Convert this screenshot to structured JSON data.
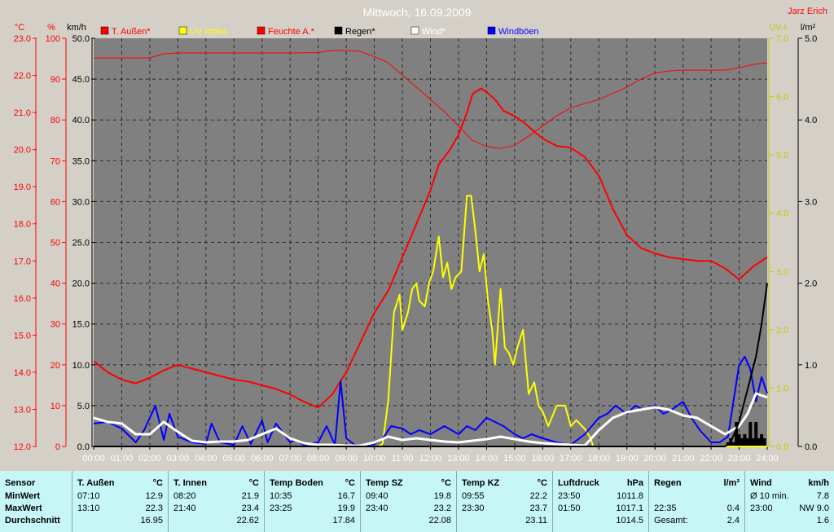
{
  "header": {
    "title": "Mittwoch, 16.09.2009",
    "author": "Jarz Erich"
  },
  "axes": {
    "temp": {
      "unit": "°C",
      "ticks": [
        "23.0",
        "22.0",
        "21.0",
        "20.0",
        "19.0",
        "18.0",
        "17.0",
        "16.0",
        "15.0",
        "14.0",
        "13.0",
        "12.0"
      ]
    },
    "hum": {
      "unit": "%",
      "ticks": [
        "100",
        "90",
        "80",
        "70",
        "60",
        "50",
        "40",
        "30",
        "20",
        "10",
        "0"
      ]
    },
    "wind": {
      "unit": "km/h",
      "ticks": [
        "50.0",
        "45.0",
        "40.0",
        "35.0",
        "30.0",
        "25.0",
        "20.0",
        "15.0",
        "10.0",
        "5.0",
        "0.0"
      ]
    },
    "uv": {
      "unit": "UV-I",
      "ticks": [
        "7.0",
        "6.0",
        "5.0",
        "4.0",
        "3.0",
        "2.0",
        "1.0",
        "0.0"
      ]
    },
    "rain": {
      "unit": "l/m²",
      "ticks": [
        "5.0",
        "4.0",
        "3.0",
        "2.0",
        "1.0",
        "0.0"
      ]
    },
    "x": [
      "00:00",
      "01:00",
      "02:00",
      "03:00",
      "04:00",
      "05:00",
      "06:00",
      "07:00",
      "08:00",
      "09:00",
      "10:00",
      "11:00",
      "12:00",
      "13:00",
      "14:00",
      "15:00",
      "16:00",
      "17:00",
      "18:00",
      "19:00",
      "20:00",
      "21:00",
      "22:00",
      "23:00",
      "24:00"
    ]
  },
  "legend": [
    {
      "label": "T. Außen*",
      "color": "#ff0000"
    },
    {
      "label": "UV Index",
      "color": "#ffff00"
    },
    {
      "label": "Feuchte A.*",
      "color": "#ff0000"
    },
    {
      "label": "Regen*",
      "color": "#000000"
    },
    {
      "label": "Wind*",
      "color": "#ffffff"
    },
    {
      "label": "Windböen",
      "color": "#0000ff"
    }
  ],
  "chart_data": {
    "type": "line",
    "title": "Mittwoch, 16.09.2009",
    "xlim": [
      0,
      24
    ],
    "series": [
      {
        "name": "T. Außen*",
        "axis": "temp",
        "color": "#ff0000",
        "width": 2,
        "x": [
          0,
          0.5,
          1,
          1.5,
          2,
          2.5,
          3,
          3.5,
          4,
          4.5,
          5,
          5.5,
          6,
          6.5,
          7,
          7.5,
          8,
          8.5,
          9,
          9.5,
          10,
          10.5,
          11,
          11.5,
          12,
          12.3,
          12.7,
          13,
          13.3,
          13.5,
          13.8,
          14,
          14.3,
          14.6,
          15,
          15.3,
          15.6,
          16,
          16.5,
          17,
          17.5,
          18,
          18.5,
          19,
          19.5,
          20,
          20.5,
          21,
          21.5,
          22,
          22.5,
          23,
          23.5,
          24
        ],
        "y": [
          14.3,
          14.0,
          13.8,
          13.7,
          13.85,
          14.05,
          14.2,
          14.1,
          14.0,
          13.9,
          13.8,
          13.75,
          13.65,
          13.55,
          13.4,
          13.2,
          13.05,
          13.4,
          14.0,
          14.8,
          15.6,
          16.2,
          17.1,
          18.0,
          18.9,
          19.6,
          20.0,
          20.4,
          21.0,
          21.5,
          21.65,
          21.55,
          21.35,
          21.05,
          20.9,
          20.75,
          20.55,
          20.3,
          20.1,
          20.05,
          19.8,
          19.3,
          18.4,
          17.7,
          17.35,
          17.2,
          17.1,
          17.05,
          17.0,
          17.0,
          16.8,
          16.5,
          16.85,
          17.1
        ]
      },
      {
        "name": "Feuchte A.*",
        "axis": "hum",
        "color": "#ff0000",
        "width": 1,
        "x": [
          0,
          1,
          2,
          2.5,
          3,
          4,
          5,
          6,
          7,
          8,
          8.5,
          9,
          9.5,
          10,
          10.5,
          11,
          11.5,
          12,
          12.5,
          13,
          13.5,
          14,
          14.5,
          15,
          15.5,
          16,
          16.5,
          17,
          17.5,
          18,
          18.5,
          19,
          19.5,
          20,
          20.5,
          21,
          21.5,
          22,
          22.5,
          23,
          23.5,
          24
        ],
        "y": [
          95.2,
          95.2,
          95.2,
          96.2,
          96.4,
          96.4,
          96.4,
          96.4,
          96.4,
          96.5,
          97.0,
          97.0,
          96.8,
          95.5,
          94.0,
          91.0,
          88.0,
          85.0,
          82.0,
          78.5,
          75.0,
          73.5,
          73.0,
          73.8,
          76.0,
          78.5,
          81.0,
          83.0,
          84.0,
          85.0,
          86.5,
          88.0,
          90.0,
          91.5,
          92.0,
          92.2,
          92.2,
          92.2,
          92.2,
          92.8,
          93.6,
          94.0
        ]
      },
      {
        "name": "UV Index",
        "axis": "uv",
        "color": "#ffff00",
        "width": 2,
        "x": [
          0,
          10.15,
          10.3,
          10.5,
          10.7,
          10.9,
          11.0,
          11.2,
          11.35,
          11.5,
          11.6,
          11.8,
          11.95,
          12.1,
          12.3,
          12.45,
          12.6,
          12.75,
          12.9,
          13.1,
          13.3,
          13.45,
          13.6,
          13.75,
          13.9,
          14.05,
          14.2,
          14.3,
          14.5,
          14.65,
          14.8,
          14.95,
          15.1,
          15.3,
          15.5,
          15.7,
          15.85,
          16.0,
          16.2,
          16.5,
          16.8,
          17.0,
          17.2,
          17.5,
          17.7,
          17.8,
          24
        ],
        "y": [
          0,
          0,
          0.05,
          0.8,
          2.3,
          2.6,
          2.0,
          2.3,
          2.7,
          2.8,
          2.5,
          2.4,
          2.8,
          3.0,
          3.6,
          2.9,
          3.15,
          2.7,
          2.9,
          3.0,
          4.3,
          4.3,
          3.7,
          3.0,
          3.3,
          2.5,
          2.0,
          1.4,
          2.7,
          1.7,
          1.6,
          1.4,
          1.7,
          2.0,
          0.9,
          1.1,
          0.7,
          0.6,
          0.35,
          0.7,
          0.7,
          0.35,
          0.45,
          0.3,
          0.15,
          0,
          0
        ]
      },
      {
        "name": "Windböen",
        "axis": "wind",
        "color": "#0000ff",
        "width": 2,
        "x": [
          0,
          0.5,
          1,
          1.5,
          1.8,
          2,
          2.2,
          2.5,
          2.7,
          3,
          3.5,
          4,
          4.2,
          4.5,
          5,
          5.3,
          5.6,
          6,
          6.2,
          6.5,
          7,
          7.2,
          7.5,
          8,
          8.3,
          8.6,
          8.8,
          9,
          9.3,
          9.6,
          10,
          10.3,
          10.6,
          11,
          11.3,
          11.6,
          12,
          12.5,
          13,
          13.3,
          13.6,
          14,
          14.3,
          14.6,
          15,
          15.3,
          15.6,
          16,
          16.5,
          17,
          17.5,
          18,
          18.3,
          18.6,
          19,
          19.3,
          19.6,
          20,
          20.3,
          20.6,
          21,
          21.3,
          21.6,
          22,
          22.3,
          22.6,
          23,
          23.2,
          23.4,
          23.6,
          23.8,
          24
        ],
        "y": [
          2.8,
          3.0,
          2.2,
          0.5,
          2.0,
          3.5,
          5.0,
          0.8,
          4.0,
          1.2,
          0.5,
          0.3,
          2.8,
          0.5,
          0.2,
          2.5,
          0.3,
          3.2,
          0.5,
          2.8,
          0.5,
          0.8,
          0.2,
          0.5,
          2.5,
          0.2,
          8.0,
          1.0,
          0.2,
          0.1,
          0.3,
          1.0,
          2.5,
          2.2,
          1.5,
          2.0,
          1.5,
          2.5,
          1.5,
          2.5,
          2.0,
          3.5,
          3.0,
          2.5,
          1.5,
          1.0,
          1.5,
          1.0,
          0.5,
          0.2,
          1.5,
          3.5,
          4.0,
          5.0,
          4.0,
          5.0,
          4.5,
          5.0,
          4.0,
          4.5,
          5.5,
          3.5,
          2.0,
          0.5,
          0.5,
          1.2,
          10.0,
          11.0,
          9.5,
          5.5,
          8.5,
          6.5
        ]
      },
      {
        "name": "Wind*",
        "axis": "wind",
        "color": "#ffffff",
        "width": 3,
        "x": [
          0,
          0.5,
          1,
          1.5,
          2,
          2.5,
          3,
          3.5,
          4,
          4.5,
          5,
          5.5,
          6,
          6.5,
          7,
          7.5,
          8,
          8.5,
          9,
          9.5,
          10,
          10.5,
          11,
          11.5,
          12,
          12.5,
          13,
          13.5,
          14,
          14.5,
          15,
          15.5,
          16,
          16.5,
          17,
          17.5,
          18,
          18.5,
          19,
          19.5,
          20,
          20.5,
          21,
          21.5,
          22,
          22.5,
          23,
          23.3,
          23.6,
          24
        ],
        "y": [
          3.5,
          3.0,
          2.8,
          1.5,
          1.5,
          3.0,
          1.8,
          0.7,
          0.5,
          0.6,
          0.6,
          0.8,
          1.5,
          2.2,
          1.0,
          0.4,
          0.2,
          0.2,
          0.1,
          0.1,
          0.5,
          1.2,
          0.8,
          1.0,
          0.8,
          0.6,
          0.5,
          0.7,
          0.9,
          1.2,
          0.9,
          0.6,
          0.4,
          0.3,
          0.2,
          0.1,
          2.0,
          3.5,
          4.2,
          4.5,
          4.8,
          4.5,
          3.8,
          3.5,
          2.5,
          1.5,
          2.5,
          4.0,
          6.5,
          6.0
        ]
      },
      {
        "name": "Regen*",
        "axis": "rain",
        "color": "#000000",
        "width": 2,
        "x": [
          0,
          22.5,
          22.7,
          23.0,
          23.3,
          23.6,
          23.8,
          24
        ],
        "y": [
          0,
          0,
          0.05,
          0.3,
          0.7,
          1.1,
          1.5,
          2.0
        ]
      }
    ],
    "rain_bars": {
      "x": [
        22.6,
        22.7,
        22.8,
        22.9,
        23.0,
        23.1,
        23.2,
        23.3,
        23.4,
        23.5,
        23.6,
        23.7,
        23.8,
        23.9
      ],
      "y": [
        0.05,
        0.1,
        0.05,
        0.3,
        0.15,
        0.1,
        0.15,
        0.1,
        0.3,
        0.1,
        0.3,
        0.1,
        0.15,
        0.1
      ]
    }
  },
  "table": {
    "columns": [
      {
        "title": "Sensor",
        "unit": "",
        "rows": [
          [
            "MinWert",
            ""
          ],
          [
            "MaxWert",
            ""
          ],
          [
            "Durchschnitt",
            ""
          ]
        ]
      },
      {
        "title": "T. Außen",
        "unit": "°C",
        "rows": [
          [
            "07:10",
            "12.9"
          ],
          [
            "13:10",
            "22.3"
          ],
          [
            "",
            "16.95"
          ]
        ]
      },
      {
        "title": "T. Innen",
        "unit": "°C",
        "rows": [
          [
            "08:20",
            "21.9"
          ],
          [
            "21:40",
            "23.4"
          ],
          [
            "",
            "22.62"
          ]
        ]
      },
      {
        "title": "Temp Boden",
        "unit": "°C",
        "rows": [
          [
            "10:35",
            "16.7"
          ],
          [
            "23:25",
            "19.9"
          ],
          [
            "",
            "17.84"
          ]
        ]
      },
      {
        "title": "Temp SZ",
        "unit": "°C",
        "rows": [
          [
            "09:40",
            "19.8"
          ],
          [
            "23:40",
            "23.2"
          ],
          [
            "",
            "22.08"
          ]
        ]
      },
      {
        "title": "Temp KZ",
        "unit": "°C",
        "rows": [
          [
            "09:55",
            "22.2"
          ],
          [
            "23:30",
            "23.7"
          ],
          [
            "",
            "23.11"
          ]
        ]
      },
      {
        "title": "Luftdruck",
        "unit": "hPa",
        "rows": [
          [
            "23:50",
            "1011.8"
          ],
          [
            "01:50",
            "1017.1"
          ],
          [
            "",
            "1014.5"
          ]
        ]
      },
      {
        "title": "Regen",
        "unit": "l/m²",
        "rows": [
          [
            "",
            ""
          ],
          [
            "22:35",
            "0.4"
          ],
          [
            "Gesamt:",
            "2.4"
          ]
        ]
      },
      {
        "title": "Wind",
        "unit": "km/h",
        "rows": [
          [
            "Ø 10 min.",
            "7.8"
          ],
          [
            "23:00",
            "NW 9.0"
          ],
          [
            "",
            "1.6"
          ]
        ]
      }
    ]
  }
}
